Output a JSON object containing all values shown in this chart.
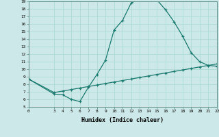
{
  "xlabel": "Humidex (Indice chaleur)",
  "background_color": "#cce8e8",
  "line_color": "#1a7a6e",
  "xlim": [
    0,
    22
  ],
  "ylim": [
    5,
    19
  ],
  "xticks": [
    0,
    3,
    4,
    5,
    6,
    7,
    8,
    9,
    10,
    11,
    12,
    13,
    14,
    15,
    16,
    17,
    18,
    19,
    20,
    21,
    22
  ],
  "yticks": [
    5,
    6,
    7,
    8,
    9,
    10,
    11,
    12,
    13,
    14,
    15,
    16,
    17,
    18,
    19
  ],
  "curve1_x": [
    0,
    3,
    4,
    5,
    6,
    7,
    8,
    9,
    10,
    11,
    12,
    13,
    14,
    15,
    16,
    17,
    18,
    19,
    20,
    21,
    22
  ],
  "curve1_y": [
    8.7,
    6.7,
    6.6,
    6.0,
    5.7,
    7.6,
    9.3,
    11.2,
    15.2,
    16.5,
    18.8,
    19.3,
    19.2,
    19.2,
    17.9,
    16.3,
    14.4,
    12.2,
    11.0,
    10.5,
    10.4
  ],
  "curve2_x": [
    0,
    3,
    4,
    5,
    6,
    7,
    8,
    9,
    10,
    11,
    12,
    13,
    14,
    15,
    16,
    17,
    18,
    19,
    20,
    21,
    22
  ],
  "curve2_y": [
    8.7,
    6.9,
    7.1,
    7.3,
    7.5,
    7.7,
    7.9,
    8.1,
    8.3,
    8.5,
    8.7,
    8.9,
    9.1,
    9.3,
    9.5,
    9.7,
    9.9,
    10.1,
    10.3,
    10.5,
    10.7
  ]
}
